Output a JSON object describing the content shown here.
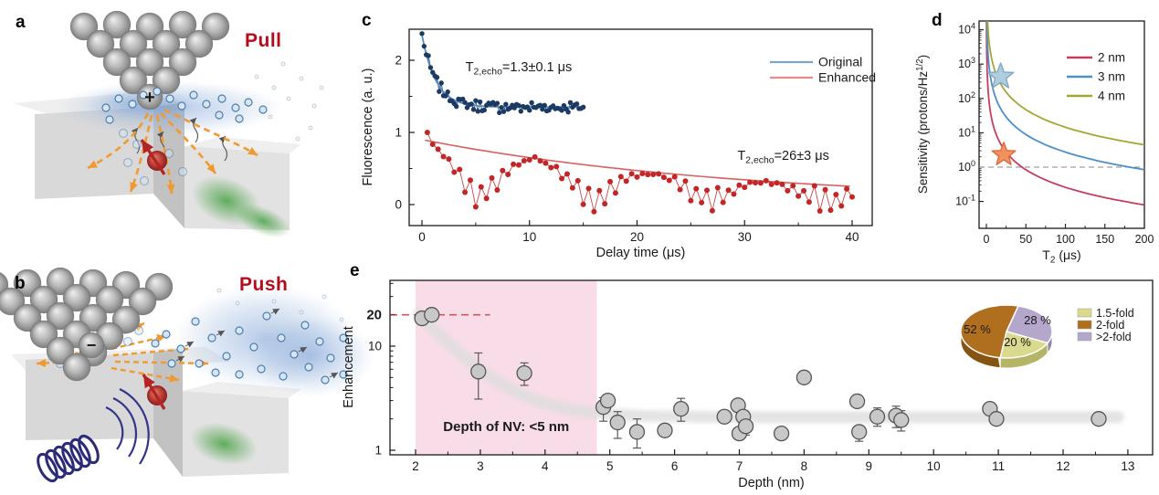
{
  "panels": {
    "a": {
      "label": "a",
      "title": "Pull",
      "tip_symbol": "+"
    },
    "b": {
      "label": "b",
      "title": "Push",
      "tip_symbol": "−"
    },
    "c": {
      "label": "c"
    },
    "d": {
      "label": "d"
    },
    "e": {
      "label": "e"
    }
  },
  "chart_data": [
    {
      "panel": "c",
      "type": "scatter-line",
      "xlabel": "Delay time (μs)",
      "ylabel": "Fluorescence (a. u.)",
      "xlim": [
        -2,
        42
      ],
      "ylim": [
        -0.45,
        2.45
      ],
      "xticks": [
        0,
        10,
        20,
        30,
        40
      ],
      "x_minor_ticks": [
        5,
        15,
        25,
        35
      ],
      "yticks": [
        0,
        1,
        2
      ],
      "y_minor_ticks": [
        0.5,
        1.5
      ],
      "legend": {
        "position": "top-right",
        "items": [
          {
            "label": "Original",
            "color": "#7aa6c9"
          },
          {
            "label": "Enhanced",
            "color": "#e58c8c"
          }
        ]
      },
      "annotations": [
        {
          "parts": [
            {
              "t": "T"
            },
            {
              "t": "2,echo",
              "sub": true
            },
            {
              "t": "=1.3±0.1 μs"
            }
          ],
          "color": "#4a9ac8",
          "x": 9,
          "y": 1.85
        },
        {
          "parts": [
            {
              "t": "T"
            },
            {
              "t": "2,echo",
              "sub": true
            },
            {
              "t": "=26±3 μs"
            }
          ],
          "color": "#e57d7d",
          "x": 33.6,
          "y": 0.62
        }
      ],
      "series": [
        {
          "name": "Original",
          "point_color": "#1b3a64",
          "line_color": "#5b8db8",
          "t_start": 0,
          "t_end": 15,
          "n_points": 76,
          "model": "plateau + amp*exp(-t/T2) + noise",
          "plateau": 1.35,
          "amp": 1.0,
          "T2_us": 1.3,
          "start_value": 2.35,
          "noise": 0.07
        },
        {
          "name": "Enhanced",
          "point_color": "#c22626",
          "line_color": "#d86060",
          "t_start": 0.5,
          "t_end": 40,
          "n_points": 80,
          "model": "exp(-t/T2) envelope with ESEEM revivals",
          "T2_us": 26,
          "revival_period_us": 10.7,
          "start_value": 1.0,
          "fit_end_value": 0.25
        }
      ]
    },
    {
      "panel": "d",
      "type": "line",
      "xlabel_parts": [
        {
          "t": "T"
        },
        {
          "t": "2",
          "sub": true
        },
        {
          "t": " (μs)"
        }
      ],
      "ylabel_parts": [
        {
          "t": "Sensitivity (protons/Hz"
        },
        {
          "t": "1/2",
          "sup": true
        },
        {
          "t": ")"
        }
      ],
      "xlim": [
        0,
        200
      ],
      "xticks": [
        0,
        50,
        100,
        150,
        200
      ],
      "x_minor_ticks": [
        25,
        75,
        125,
        175
      ],
      "ylog_exponents": [
        -1,
        0,
        1,
        2,
        3,
        4
      ],
      "series": [
        {
          "name": "2 nm",
          "color": "#c53e60",
          "power_law_a": 650,
          "power_law_exp": -1.7,
          "sampled": {
            "T2": [
              2,
              5,
              10,
              20,
              50,
              100,
              200
            ],
            "value": [
              210,
              42,
              13,
              4.0,
              0.84,
              0.26,
              0.08
            ]
          }
        },
        {
          "name": "3 nm",
          "color": "#4e8fc7",
          "power_law_a": 6890,
          "power_law_exp": -1.7,
          "sampled": {
            "T2": [
              2,
              5,
              10,
              20,
              50,
              100,
              200
            ],
            "value": [
              2120,
              450,
              135,
              42,
              8.9,
              2.7,
              0.85
            ]
          }
        },
        {
          "name": "4 nm",
          "color": "#a4a636",
          "power_law_a": 36500,
          "power_law_exp": -1.7,
          "sampled": {
            "T2": [
              2,
              5,
              10,
              20,
              50,
              100,
              200
            ],
            "value": [
              11200,
              2400,
              730,
              225,
              47,
              14.5,
              4.5
            ]
          }
        }
      ],
      "reference_line": {
        "value": 1,
        "style": "dashed",
        "color": "#8a8a8a"
      },
      "markers": [
        {
          "shape": "star",
          "fill": "#aecde0",
          "edge": "#85a8bd",
          "T2": 18,
          "value": 430
        },
        {
          "shape": "star",
          "fill": "#f2925f",
          "edge": "#d96b3f",
          "T2": 22,
          "value": 2.3
        }
      ]
    },
    {
      "panel": "e",
      "type": "scatter",
      "xlabel": "Depth (nm)",
      "ylabel": "Enhancement",
      "xlim": [
        1.6,
        13.4
      ],
      "xticks": [
        2,
        3,
        4,
        5,
        6,
        7,
        8,
        9,
        10,
        11,
        12,
        13
      ],
      "ylog": true,
      "ylim": [
        1,
        43
      ],
      "yticks": [
        1,
        10
      ],
      "special_ytick": {
        "label": "20",
        "value": 20,
        "color": "#9c1c28"
      },
      "dashed_line": {
        "y": 20,
        "x_start": 1.6,
        "x_end": 3.15,
        "color": "#d05666"
      },
      "shaded_region": {
        "x0": 2.0,
        "x1": 4.8,
        "color": "#f8dce7",
        "label": "Depth of NV: <5 nm",
        "label_color": "#16399b"
      },
      "trend_band": {
        "color": "#dedede",
        "model": "2.08 + 527*exp(-depth/0.61)"
      },
      "point_style": {
        "fill": "#c8c8c8",
        "edge": "#555555"
      },
      "points": [
        {
          "x": 2.1,
          "y": 18.5,
          "err": [
            2.5,
            2.5
          ]
        },
        {
          "x": 2.25,
          "y": 20.0,
          "err": [
            2.5,
            3.0
          ]
        },
        {
          "x": 2.97,
          "y": 5.7,
          "err": [
            2.6,
            2.9
          ]
        },
        {
          "x": 3.68,
          "y": 5.5,
          "err": [
            1.3,
            1.4
          ]
        },
        {
          "x": 4.9,
          "y": 2.6,
          "err": [
            0.7,
            0.6
          ]
        },
        {
          "x": 4.97,
          "y": 3.0,
          "err": [
            0.35,
            0.35
          ]
        },
        {
          "x": 5.12,
          "y": 1.85,
          "err": [
            0.55,
            0.5
          ]
        },
        {
          "x": 5.42,
          "y": 1.5,
          "err": [
            0.45,
            0.5
          ]
        },
        {
          "x": 5.85,
          "y": 1.55,
          "err": [
            0.2,
            0.2
          ]
        },
        {
          "x": 6.1,
          "y": 2.5,
          "err": [
            0.6,
            0.65
          ]
        },
        {
          "x": 6.77,
          "y": 2.1,
          "err": [
            0.2,
            0.2
          ]
        },
        {
          "x": 6.98,
          "y": 2.7,
          "err": [
            0.3,
            0.25
          ]
        },
        {
          "x": 7.0,
          "y": 1.45,
          "err": [
            0.15,
            0.15
          ]
        },
        {
          "x": 7.06,
          "y": 2.1,
          "err": [
            0.3,
            0.3
          ]
        },
        {
          "x": 7.1,
          "y": 1.7,
          "err": [
            0.3,
            0.35
          ]
        },
        {
          "x": 7.65,
          "y": 1.45,
          "err": [
            0.1,
            0.12
          ]
        },
        {
          "x": 8.0,
          "y": 5.0,
          "err": [
            0.3,
            0.3
          ]
        },
        {
          "x": 8.82,
          "y": 2.95,
          "err": [
            0.3,
            0.35
          ]
        },
        {
          "x": 8.85,
          "y": 1.5,
          "err": [
            0.28,
            0.22
          ]
        },
        {
          "x": 9.13,
          "y": 2.1,
          "err": [
            0.4,
            0.45
          ]
        },
        {
          "x": 9.42,
          "y": 2.15,
          "err": [
            0.5,
            0.5
          ]
        },
        {
          "x": 9.5,
          "y": 1.95,
          "err": [
            0.42,
            0.45
          ]
        },
        {
          "x": 10.87,
          "y": 2.5,
          "err": [
            0.3,
            0.3
          ]
        },
        {
          "x": 10.97,
          "y": 2.0,
          "err": [
            0.2,
            0.2
          ]
        },
        {
          "x": 12.55,
          "y": 2.0,
          "err": [
            0.15,
            0.18
          ]
        }
      ]
    },
    {
      "panel": "e_inset",
      "type": "pie",
      "style": "3d",
      "slices": [
        {
          "label": "1.5-fold",
          "value_pct": 20,
          "pct_label": "20 %",
          "color": "#d9da8e"
        },
        {
          "label": "2-fold",
          "value_pct": 52,
          "pct_label": "52 %",
          "color": "#b06f1e"
        },
        {
          "label": ">2-fold",
          "value_pct": 28,
          "pct_label": "28 %",
          "color": "#b5a6cc"
        }
      ]
    }
  ]
}
